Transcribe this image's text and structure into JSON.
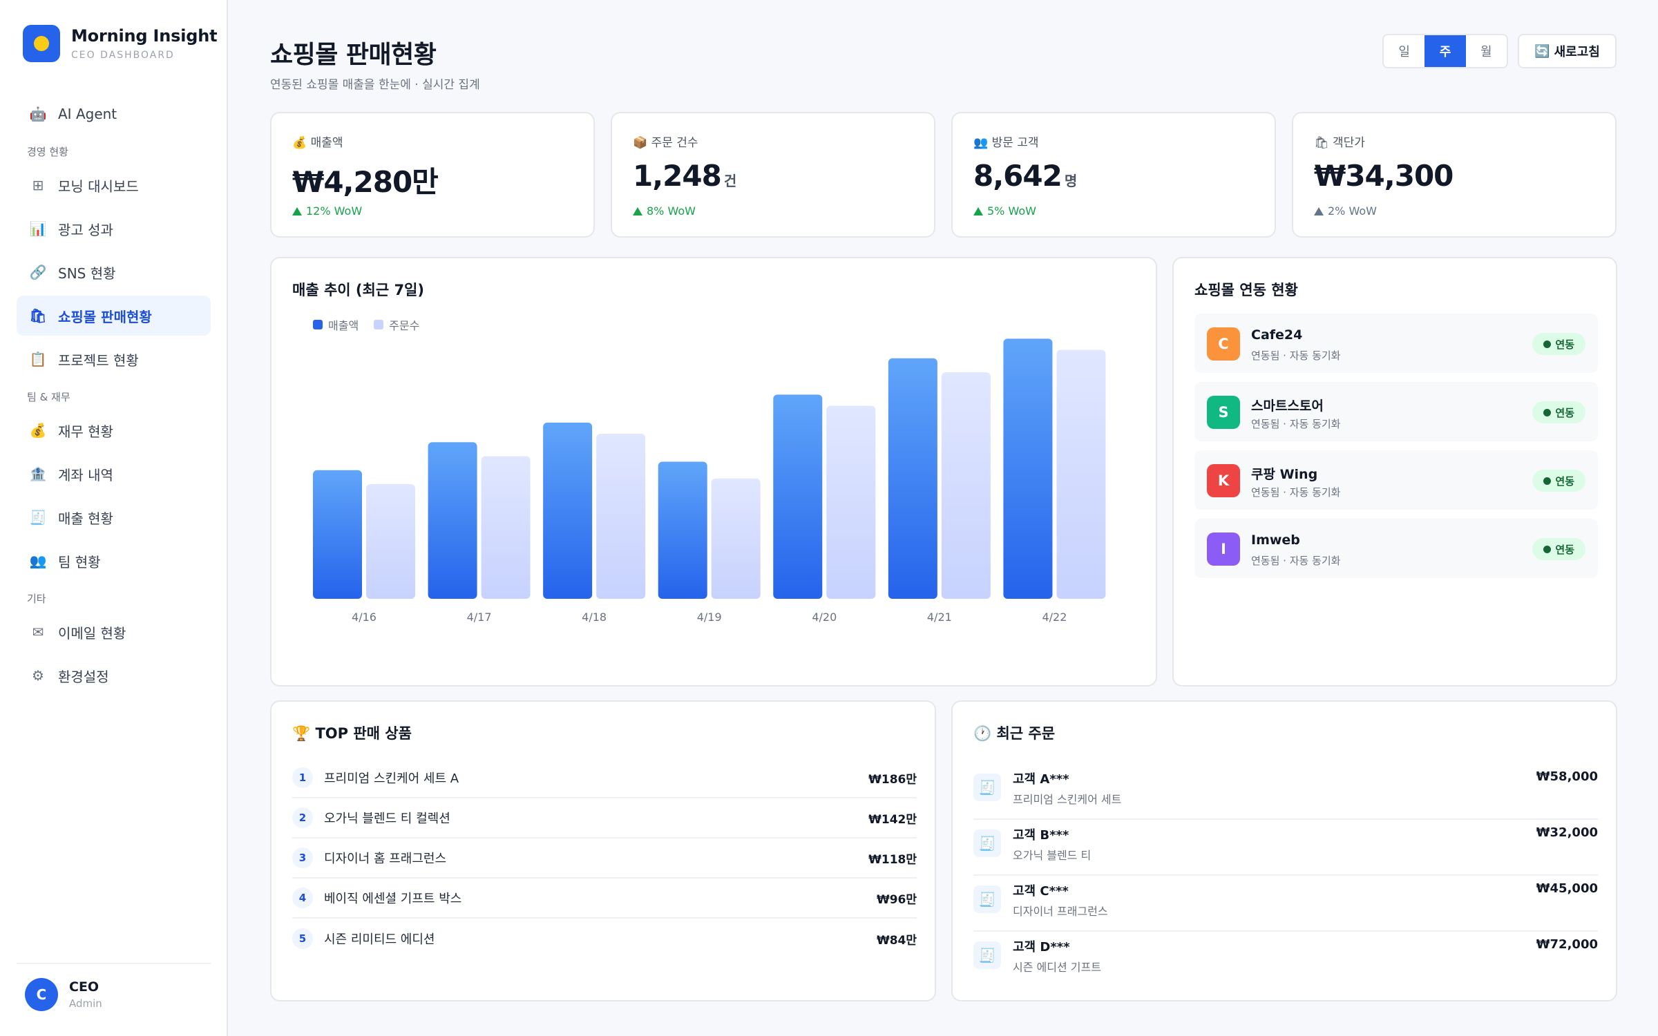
{
  "brand": {
    "title": "Morning Insight",
    "subtitle": "CEO DASHBOARD"
  },
  "nav": {
    "agent": {
      "icon": "robot-icon",
      "label": "AI Agent"
    },
    "section_business": "경영 현황",
    "morning_dashboard": {
      "icon": "grid-icon",
      "label": "모닝 대시보드"
    },
    "ad_performance": {
      "icon": "bar-chart-icon",
      "label": "광고 성과"
    },
    "sns_status": {
      "icon": "link-icon",
      "label": "SNS 현황"
    },
    "shopping_sales": {
      "icon": "shopping-bag-icon",
      "label": "쇼핑몰 판매현황"
    },
    "project_status": {
      "icon": "clipboard-icon",
      "label": "프로젝트 현황"
    },
    "section_team": "팀 & 재무",
    "finance_status": {
      "icon": "money-bag-icon",
      "label": "재무 현황"
    },
    "account_history": {
      "icon": "bank-icon",
      "label": "계좌 내역"
    },
    "revenue_status": {
      "icon": "receipt-icon",
      "label": "매출 현황"
    },
    "team_status": {
      "icon": "people-icon",
      "label": "팀 현황"
    },
    "section_etc": "기타",
    "email_status": {
      "icon": "envelope-icon",
      "label": "이메일 현황"
    },
    "settings": {
      "icon": "gear-icon",
      "label": "환경설정"
    }
  },
  "profile": {
    "initial": "C",
    "name": "CEO",
    "role": "Admin"
  },
  "header": {
    "title": "쇼핑몰 판매현황",
    "subtitle": "연동된 쇼핑몰 매출을 한눈에 · 실시간 집계",
    "periods": [
      "일",
      "주",
      "월"
    ],
    "active_period": "주",
    "refresh_label": "새로고침"
  },
  "kpis": [
    {
      "icon": "💰",
      "label": "매출액",
      "value": "₩4,280만",
      "unit": "",
      "change": "12% WoW",
      "trend": "up"
    },
    {
      "icon": "📦",
      "label": "주문 건수",
      "value": "1,248",
      "unit": "건",
      "change": "8% WoW",
      "trend": "up"
    },
    {
      "icon": "👥",
      "label": "방문 고객",
      "value": "8,642",
      "unit": "명",
      "change": "5% WoW",
      "trend": "up"
    },
    {
      "icon": "🛍",
      "label": "객단가",
      "value": "₩34,300",
      "unit": "",
      "change": "2% WoW",
      "trend": "neutral"
    }
  ],
  "chart_data": {
    "type": "bar",
    "title": "매출 추이 (최근 7일)",
    "categories": [
      "4/16",
      "4/17",
      "4/18",
      "4/19",
      "4/20",
      "4/21",
      "4/22"
    ],
    "series": [
      {
        "name": "매출액",
        "values": [
          46,
          56,
          63,
          49,
          73,
          86,
          93
        ],
        "color": "#2563eb"
      },
      {
        "name": "주문수",
        "values": [
          41,
          51,
          59,
          43,
          69,
          81,
          89
        ],
        "color": "#c7d2fe"
      }
    ],
    "ylim": [
      0,
      100
    ],
    "grid": false,
    "legend": "top-left"
  },
  "sync": {
    "title": "쇼핑몰 연동 현황",
    "items": [
      {
        "initial": "C",
        "name": "Cafe24",
        "desc": "연동됨 · 자동 동기화",
        "status": "연동",
        "color": "#fb923c"
      },
      {
        "initial": "S",
        "name": "스마트스토어",
        "desc": "연동됨 · 자동 동기화",
        "status": "연동",
        "color": "#10b981"
      },
      {
        "initial": "K",
        "name": "쿠팡 Wing",
        "desc": "연동됨 · 자동 동기화",
        "status": "연동",
        "color": "#ef4444"
      },
      {
        "initial": "I",
        "name": "Imweb",
        "desc": "연동됨 · 자동 동기화",
        "status": "연동",
        "color": "#8b5cf6"
      }
    ]
  },
  "top_products": {
    "title": "🏆 TOP 판매 상품",
    "items": [
      {
        "rank": "1",
        "name": "프리미엄 스킨케어 세트 A",
        "amount": "₩186만"
      },
      {
        "rank": "2",
        "name": "오가닉 블렌드 티 컬렉션",
        "amount": "₩142만"
      },
      {
        "rank": "3",
        "name": "디자이너 홈 프래그런스",
        "amount": "₩118만"
      },
      {
        "rank": "4",
        "name": "베이직 에센셜 기프트 박스",
        "amount": "₩96만"
      },
      {
        "rank": "5",
        "name": "시즌 리미티드 에디션",
        "amount": "₩84만"
      }
    ]
  },
  "recent_orders": {
    "title": "🕐 최근 주문",
    "items": [
      {
        "customer": "고객 A***",
        "product": "프리미엄 스킨케어 세트",
        "amount": "₩58,000"
      },
      {
        "customer": "고객 B***",
        "product": "오가닉 블렌드 티",
        "amount": "₩32,000"
      },
      {
        "customer": "고객 C***",
        "product": "디자이너 프래그런스",
        "amount": "₩45,000"
      },
      {
        "customer": "고객 D***",
        "product": "시즌 에디션 기프트",
        "amount": "₩72,000"
      }
    ]
  }
}
